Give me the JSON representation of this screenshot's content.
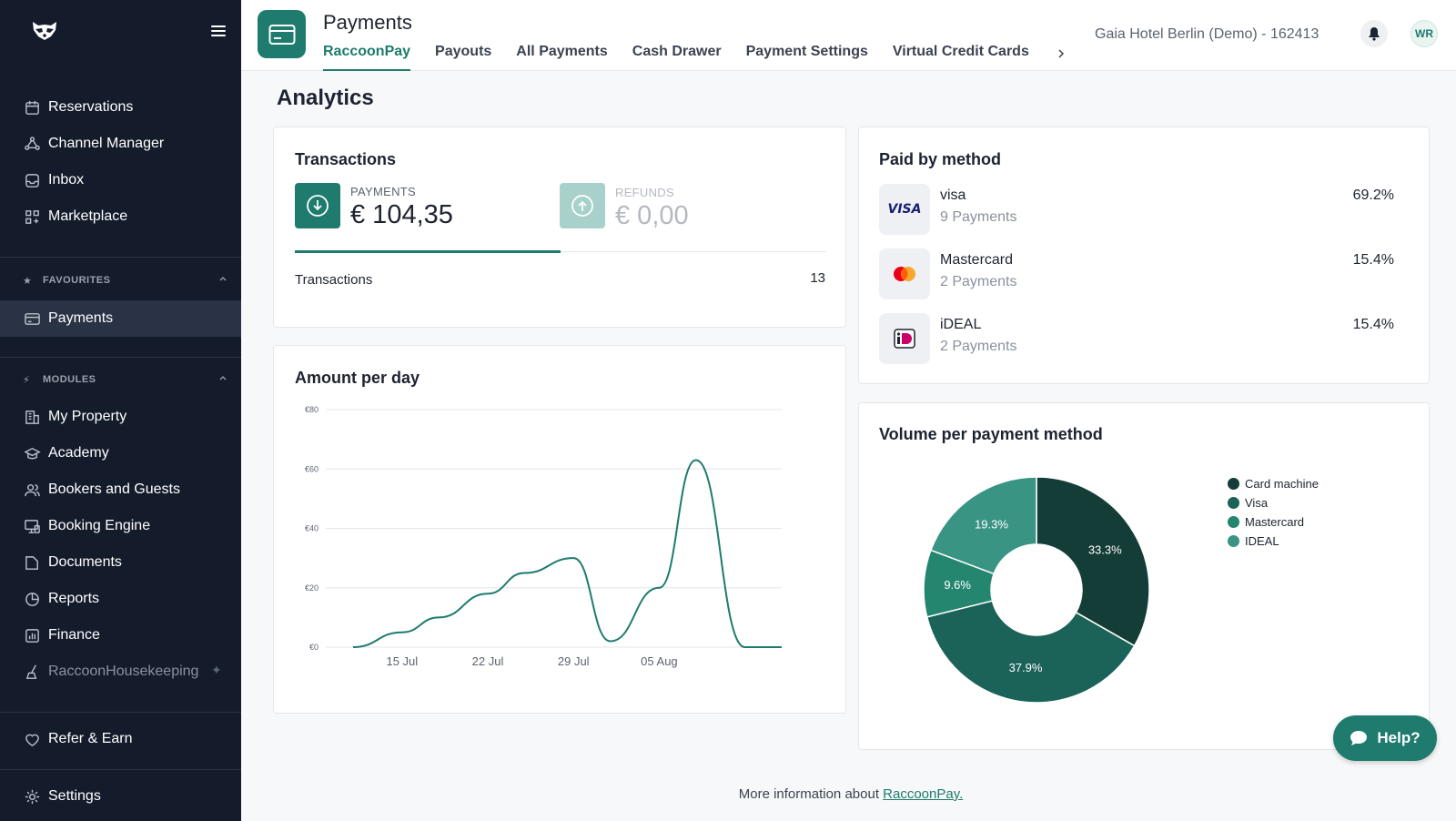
{
  "sidebar": {
    "top_items": [
      {
        "label": "Reservations",
        "icon": "calendar-icon"
      },
      {
        "label": "Channel Manager",
        "icon": "network-icon"
      },
      {
        "label": "Inbox",
        "icon": "inbox-icon"
      },
      {
        "label": "Marketplace",
        "icon": "grid-plus-icon"
      }
    ],
    "favourites_label": "FAVOURITES",
    "favourites": [
      {
        "label": "Payments",
        "icon": "card-icon"
      }
    ],
    "modules_label": "MODULES",
    "modules": [
      {
        "label": "My Property",
        "icon": "building-icon"
      },
      {
        "label": "Academy",
        "icon": "graduation-cap-icon"
      },
      {
        "label": "Bookers and Guests",
        "icon": "users-icon"
      },
      {
        "label": "Booking Engine",
        "icon": "monitor-icon"
      },
      {
        "label": "Documents",
        "icon": "folder-icon"
      },
      {
        "label": "Reports",
        "icon": "pie-chart-icon"
      },
      {
        "label": "Finance",
        "icon": "bar-chart-icon"
      },
      {
        "label": "RaccoonHousekeeping",
        "icon": "broom-icon"
      }
    ],
    "bottom_items": [
      {
        "label": "Refer & Earn",
        "icon": "heart-icon"
      },
      {
        "label": "Settings",
        "icon": "gear-icon"
      }
    ]
  },
  "header": {
    "title": "Payments",
    "tabs": [
      "RaccoonPay",
      "Payouts",
      "All Payments",
      "Cash Drawer",
      "Payment Settings",
      "Virtual Credit Cards"
    ],
    "active_tab": "RaccoonPay",
    "hotel": "Gaia Hotel Berlin (Demo) - 162413",
    "avatar_initials": "WR"
  },
  "main": {
    "title": "Analytics",
    "transactions": {
      "title": "Transactions",
      "payments_label": "PAYMENTS",
      "payments_value": "€ 104,35",
      "refunds_label": "REFUNDS",
      "refunds_value": "€ 0,00",
      "count_label": "Transactions",
      "count_value": "13"
    },
    "paid_by_method": {
      "title": "Paid by method",
      "methods": [
        {
          "name": "visa",
          "count": "9 Payments",
          "pct": "69.2%",
          "logo": "visa-logo"
        },
        {
          "name": "Mastercard",
          "count": "2 Payments",
          "pct": "15.4%",
          "logo": "mastercard-logo"
        },
        {
          "name": "iDEAL",
          "count": "2 Payments",
          "pct": "15.4%",
          "logo": "ideal-logo"
        }
      ]
    },
    "amount_per_day": {
      "title": "Amount per day"
    },
    "volume_per_method": {
      "title": "Volume per payment method"
    },
    "footer_text": "More information about ",
    "footer_link": "RaccoonPay."
  },
  "help_label": "Help?",
  "colors": {
    "accent": "#1e7b6d",
    "sidebar": "#141c2c"
  },
  "chart_data": [
    {
      "type": "line",
      "title": "Amount per day",
      "x_ticks": [
        "15 Jul",
        "22 Jul",
        "29 Jul",
        "05 Aug"
      ],
      "y_ticks": [
        "€0",
        "€20",
        "€40",
        "€60",
        "€80"
      ],
      "ylim": [
        0,
        80
      ],
      "series": [
        {
          "x": [
            "2025-07-11",
            "2025-07-15",
            "2025-07-18",
            "2025-07-22",
            "2025-07-25",
            "2025-07-29",
            "2025-08-01",
            "2025-08-05",
            "2025-08-08",
            "2025-08-12",
            "2025-08-15"
          ],
          "values": [
            0,
            5,
            10,
            18,
            25,
            30,
            2,
            20,
            63,
            0,
            0
          ]
        }
      ],
      "grid": true
    },
    {
      "type": "pie",
      "title": "Volume per payment method",
      "labels": [
        "Card machine",
        "Visa",
        "Mastercard",
        "IDEAL"
      ],
      "values": [
        33.3,
        37.9,
        9.6,
        19.3
      ],
      "value_labels": [
        "33.3%",
        "37.9%",
        "9.6%",
        "19.3%"
      ],
      "colors": [
        "#143d37",
        "#1b6358",
        "#24866f",
        "#3a9484"
      ],
      "legend": "right"
    }
  ]
}
